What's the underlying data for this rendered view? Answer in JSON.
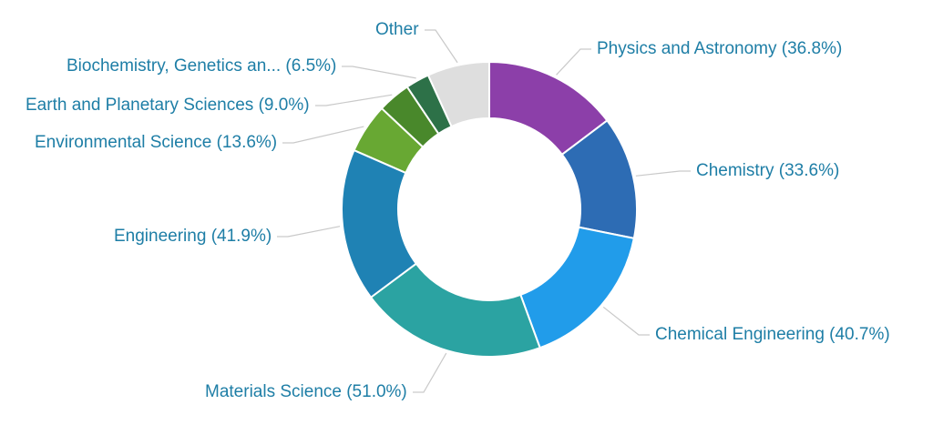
{
  "chart_data": {
    "type": "pie",
    "subtype": "donut",
    "title": "",
    "legend_position": "none",
    "label_style": "outside-with-connectors",
    "background": "#ffffff",
    "label_color": "#1e7ea6",
    "connector_color": "#c9c9c9",
    "slice_border_color": "#ffffff",
    "slices": [
      {
        "name": "Physics and Astronomy",
        "value": 36.8,
        "display_label": "Physics and Astronomy (36.8%)",
        "color": "#8c3fa9"
      },
      {
        "name": "Chemistry",
        "value": 33.6,
        "display_label": "Chemistry (33.6%)",
        "color": "#2d6cb4"
      },
      {
        "name": "Chemical Engineering",
        "value": 40.7,
        "display_label": "Chemical Engineering (40.7%)",
        "color": "#219cea"
      },
      {
        "name": "Materials Science",
        "value": 51.0,
        "display_label": "Materials Science (51.0%)",
        "color": "#2ba3a2"
      },
      {
        "name": "Engineering",
        "value": 41.9,
        "display_label": "Engineering (41.9%)",
        "color": "#1f82b4"
      },
      {
        "name": "Environmental Science",
        "value": 13.6,
        "display_label": "Environmental Science (13.6%)",
        "color": "#68a833"
      },
      {
        "name": "Earth and Planetary Sciences",
        "value": 9.0,
        "display_label": "Earth and Planetary Sciences (9.0%)",
        "color": "#49882b"
      },
      {
        "name": "Biochemistry, Genetics an...",
        "value": 6.5,
        "display_label": "Biochemistry, Genetics an... (6.5%)",
        "color": "#2d7148"
      },
      {
        "name": "Other",
        "value": 17.0,
        "value_estimated": true,
        "display_label": "Other",
        "color": "#dedede"
      }
    ]
  }
}
